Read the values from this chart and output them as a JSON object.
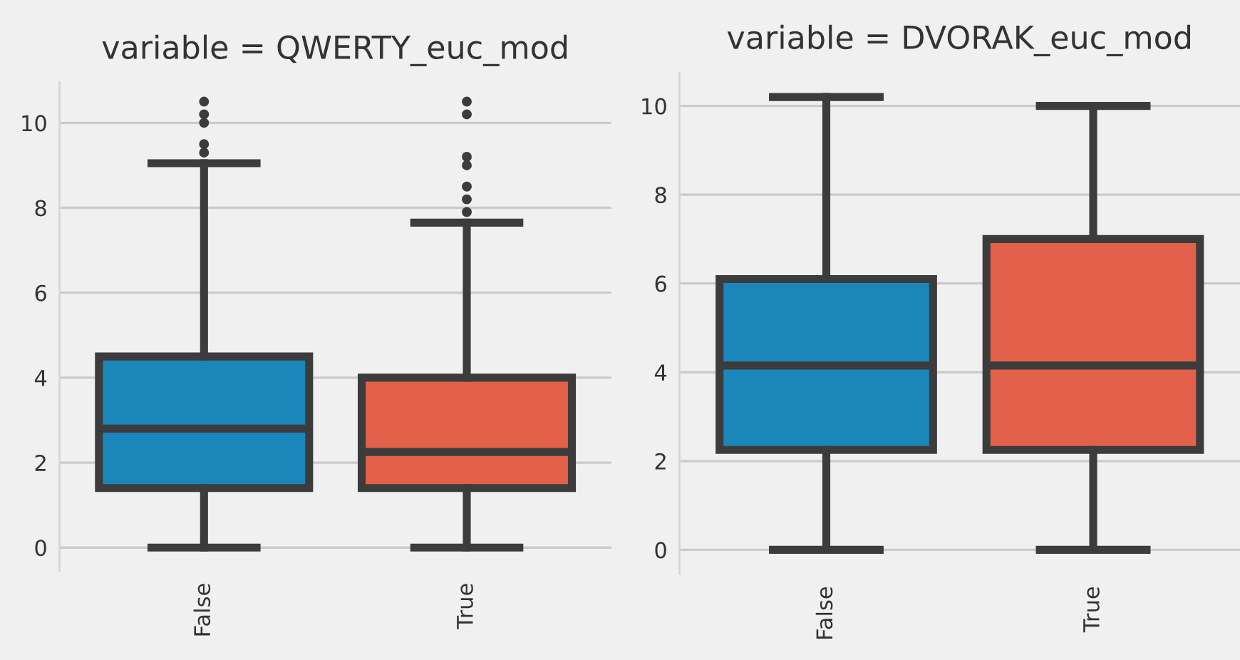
{
  "chart_data": [
    {
      "type": "box",
      "title": "variable = QWERTY_euc_mod",
      "categories": [
        "False",
        "True"
      ],
      "colors": [
        "#1b86ba",
        "#e3604a"
      ],
      "boxes": [
        {
          "low": 0,
          "q1": 1.4,
          "median": 2.8,
          "q3": 4.5,
          "high": 9.05,
          "outliers": [
            9.3,
            9.5,
            10.0,
            10.2,
            10.5
          ]
        },
        {
          "low": 0,
          "q1": 1.4,
          "median": 2.25,
          "q3": 4.0,
          "high": 7.65,
          "outliers": [
            7.9,
            8.2,
            8.5,
            9.0,
            9.2,
            10.2,
            10.5
          ]
        }
      ],
      "ylim": [
        -0.55,
        10.95
      ],
      "yticks": [
        0,
        2,
        4,
        6,
        8,
        10
      ],
      "grid": "y"
    },
    {
      "type": "box",
      "title": "variable = DVORAK_euc_mod",
      "categories": [
        "False",
        "True"
      ],
      "colors": [
        "#1b86ba",
        "#e3604a"
      ],
      "boxes": [
        {
          "low": 0,
          "q1": 2.25,
          "median": 4.15,
          "q3": 6.1,
          "high": 10.2
        },
        {
          "low": 0,
          "q1": 2.25,
          "median": 4.15,
          "q3": 7.0,
          "high": 10.0
        }
      ],
      "ylim": [
        -0.55,
        10.75
      ],
      "yticks": [
        0,
        2,
        4,
        6,
        8,
        10
      ],
      "grid": "y"
    }
  ]
}
